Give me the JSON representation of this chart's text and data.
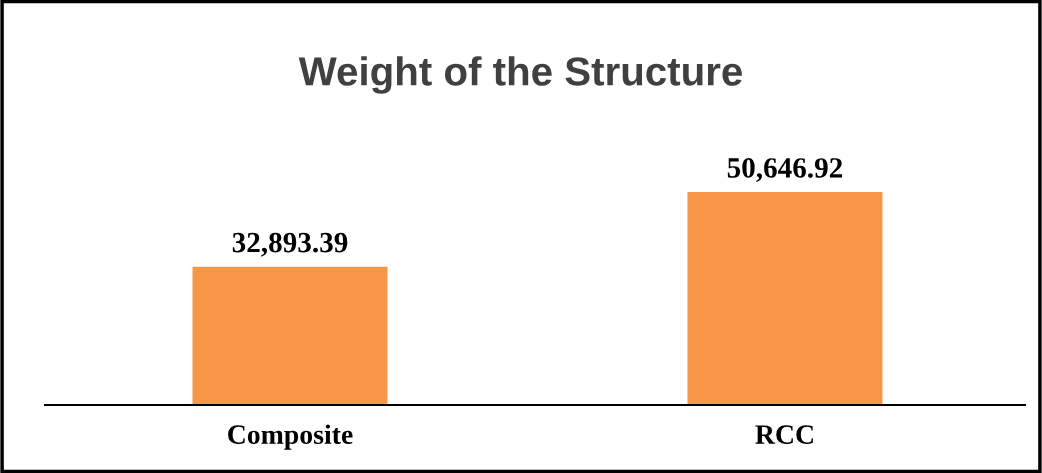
{
  "chart_data": {
    "type": "bar",
    "title": "Weight of the Structure",
    "categories": [
      "Composite",
      "RCC"
    ],
    "values": [
      32893.39,
      50646.92
    ],
    "value_labels": [
      "32,893.39",
      "50,646.92"
    ],
    "color": "#f79646",
    "grid": false
  }
}
